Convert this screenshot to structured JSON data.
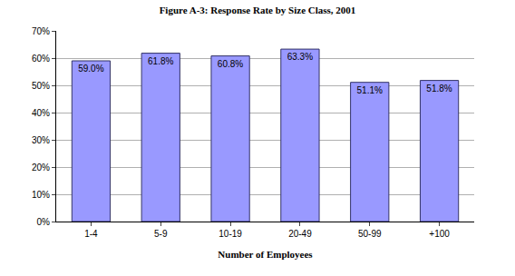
{
  "chart_data": {
    "type": "bar",
    "title": "Figure A-3: Response Rate by Size Class, 2001",
    "x_label": "Number of Employees",
    "categories": [
      "1-4",
      "5-9",
      "10-19",
      "20-49",
      "50-99",
      "+100"
    ],
    "values": [
      59.0,
      61.8,
      60.8,
      63.3,
      51.1,
      51.8
    ],
    "value_labels": [
      "59.0%",
      "61.8%",
      "60.8%",
      "63.3%",
      "51.1%",
      "51.8%"
    ],
    "color": "#9999ff",
    "ylim": [
      0,
      70
    ],
    "yticks": [
      {
        "value": 0,
        "label": "0%"
      },
      {
        "value": 10,
        "label": "10%"
      },
      {
        "value": 20,
        "label": "20%"
      },
      {
        "value": 30,
        "label": "30%"
      },
      {
        "value": 40,
        "label": "40%"
      },
      {
        "value": 50,
        "label": "50%"
      },
      {
        "value": 60,
        "label": "60%"
      },
      {
        "value": 70,
        "label": "70%"
      }
    ],
    "grid": true,
    "data_labels": true
  }
}
